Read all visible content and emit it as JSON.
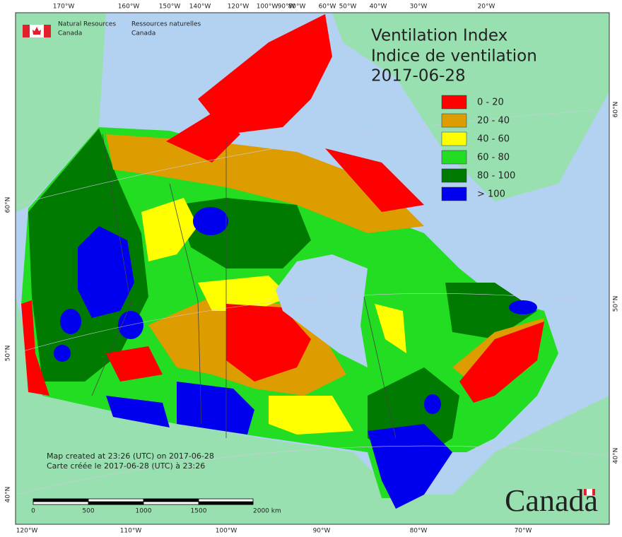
{
  "header": {
    "agency_en": [
      "Natural Resources",
      "Canada"
    ],
    "agency_fr": [
      "Ressources naturelles",
      "Canada"
    ]
  },
  "title": [
    "Ventilation Index",
    "Indice de ventilation",
    "2017-06-28"
  ],
  "legend": [
    {
      "label": "0 - 20",
      "color": "#ff0000"
    },
    {
      "label": "20 - 40",
      "color": "#dd9c00"
    },
    {
      "label": "40 - 60",
      "color": "#ffff00"
    },
    {
      "label": "60 - 80",
      "color": "#22dd22"
    },
    {
      "label": "80 - 100",
      "color": "#007a00"
    },
    {
      "label": "> 100",
      "color": "#0000ee"
    }
  ],
  "graticule": {
    "top": [
      "170°W",
      "160°W",
      "150°W",
      "140°W",
      "120°W",
      "100°W",
      "90°W",
      "80°W",
      "60°W",
      "50°W",
      "40°W",
      "30°W",
      "20°W"
    ],
    "bottom": [
      "120°W",
      "110°W",
      "100°W",
      "90°W",
      "80°W",
      "70°W"
    ],
    "left": [
      "60°N",
      "50°N",
      "40°N"
    ],
    "right": [
      "60°N",
      "50°N",
      "40°N"
    ]
  },
  "scale_bar": [
    "0",
    "500",
    "1000",
    "1500",
    "2000 km"
  ],
  "credits": [
    "Map created at 23:26 (UTC) on 2017-06-28",
    "Carte créée le 2017-06-28 (UTC) à 23:26"
  ],
  "wordmark": "Canada"
}
